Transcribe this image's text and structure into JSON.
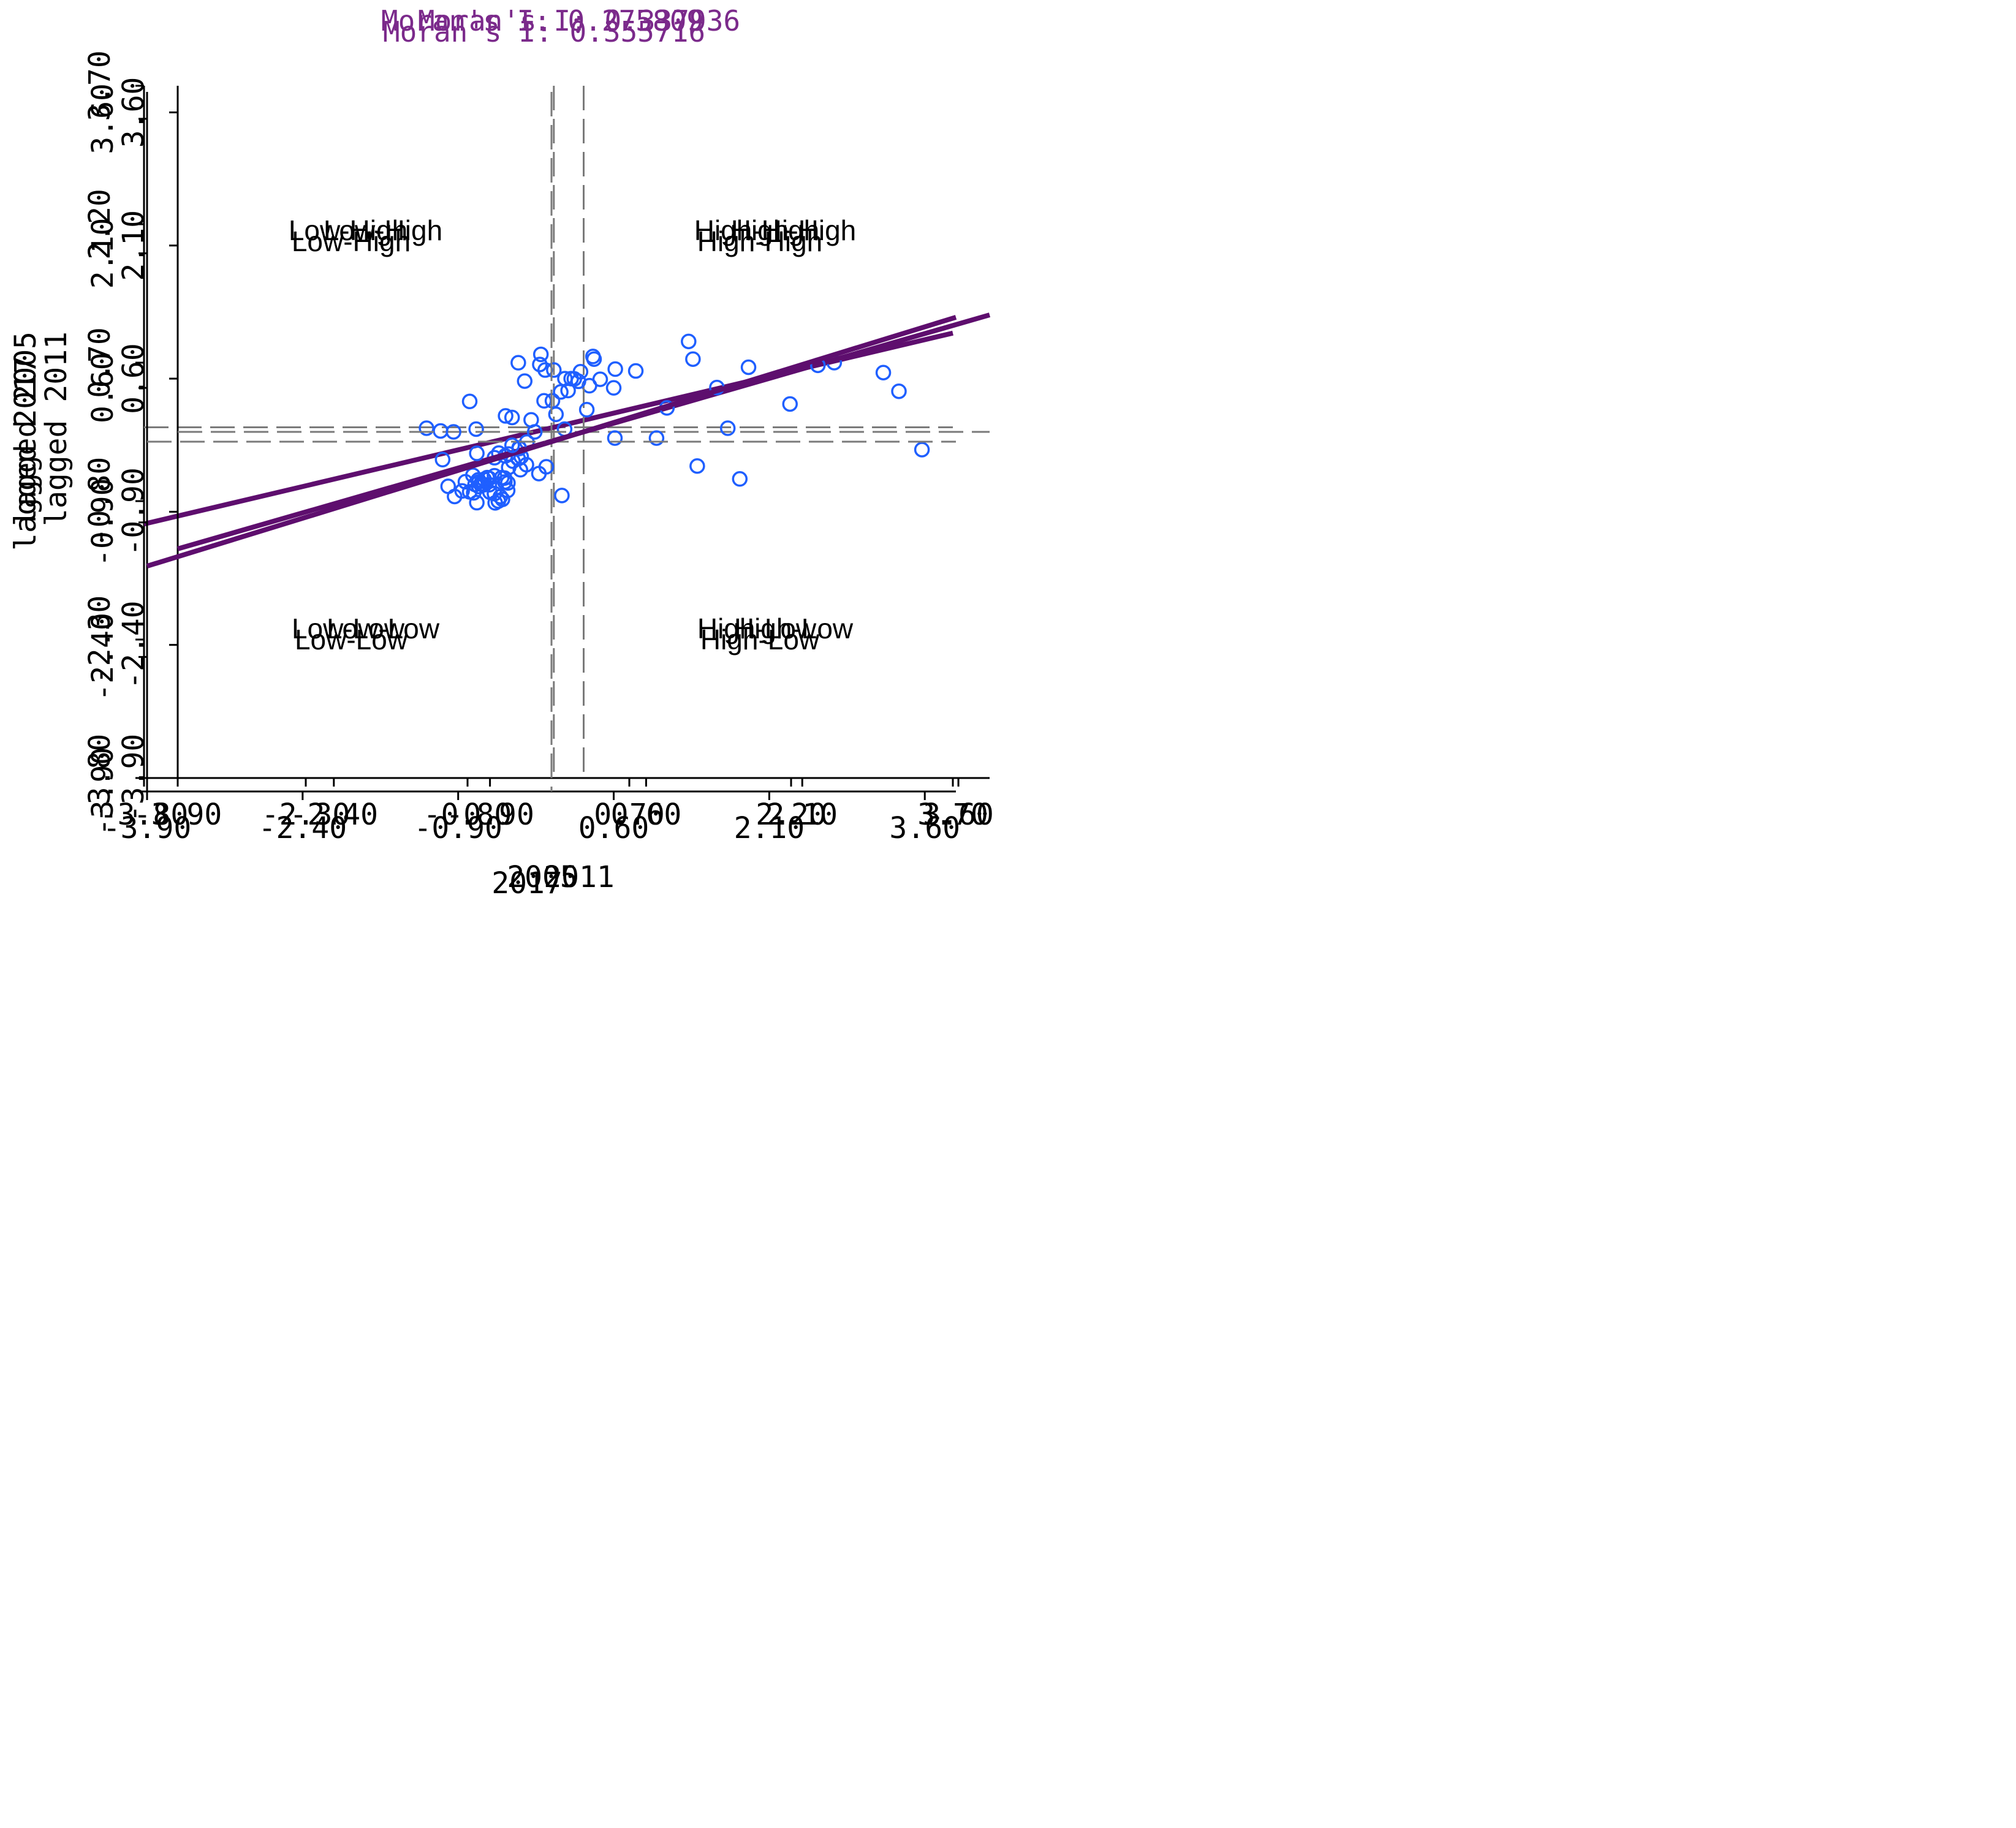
{
  "colors": {
    "title": "#7b2a8b",
    "regression": "#5e0e6e",
    "points": "#1f5fff",
    "axis": "#000000",
    "dashed": "#7a7a7a",
    "text": "#000000"
  },
  "chart_data": [
    {
      "type": "scatter",
      "title": "Moran's I: 0.275809",
      "xlabel": "2005",
      "ylabel": "lagged 2005",
      "xlim": [
        -3.8,
        3.7
      ],
      "ylim": [
        -3.8,
        3.7
      ],
      "xticks": [
        "-3.80",
        "-2.30",
        "-0.80",
        "0.70",
        "2.20",
        "3.70"
      ],
      "yticks": [
        "-3.80",
        "-2.30",
        "-0.80",
        "0.70",
        "2.20",
        "3.70"
      ],
      "xtick_values": [
        -3.8,
        -2.3,
        -0.8,
        0.7,
        2.2,
        3.7
      ],
      "ytick_values": [
        -3.8,
        -2.3,
        -0.8,
        0.7,
        2.2,
        3.7
      ],
      "quadrants": {
        "low_high": "Low-High",
        "high_high": "High-High",
        "low_low": "Low-Low",
        "high_low": "High-Low"
      },
      "slope": 0.275809,
      "x": [
        -1.18,
        -1.05,
        -0.78,
        -0.72,
        -0.55,
        -0.32,
        -0.27,
        -0.13,
        -0.12,
        -0.08,
        0.02,
        0.0,
        0.1,
        0.33,
        0.43,
        0.57,
        0.76,
        1.25,
        1.33,
        2.6,
        3.2,
        -0.98,
        -0.92,
        -0.85,
        -0.82,
        -0.78,
        -0.75,
        -0.7,
        -0.66,
        -0.51,
        -0.45,
        -0.42,
        -0.31,
        -0.33,
        -0.25,
        -0.73,
        -0.21
      ],
      "y": [
        -0.01,
        -0.04,
        0.28,
        -0.02,
        -0.33,
        -0.23,
        0.5,
        0.68,
        0.79,
        0.62,
        0.14,
        0.62,
        -0.02,
        0.45,
        0.52,
        0.63,
        0.61,
        0.93,
        -0.42,
        0.7,
        0.39,
        -0.64,
        -0.75,
        -0.69,
        -0.59,
        -0.7,
        -0.52,
        -0.57,
        -0.62,
        -0.28,
        -0.31,
        -0.29,
        -0.46,
        -0.34,
        -0.16,
        -0.62,
        0.08
      ]
    },
    {
      "type": "scatter",
      "title": "Moran's I: 0.337936",
      "xlabel": "2011",
      "ylabel": "lagged 2011",
      "xlim": [
        -3.9,
        3.9
      ],
      "ylim": [
        -3.9,
        3.9
      ],
      "xticks": [
        "-3.90",
        "-2.40",
        "-0.90",
        "0.60",
        "2.10",
        "3.60"
      ],
      "yticks": [
        "-3.90",
        "-2.40",
        "-0.90",
        "0.60",
        "2.10",
        "3.60"
      ],
      "xtick_values": [
        -3.9,
        -2.4,
        -0.9,
        0.6,
        2.1,
        3.6
      ],
      "ytick_values": [
        -3.9,
        -2.4,
        -0.9,
        0.6,
        2.1,
        3.6
      ],
      "quadrants": {
        "low_high": "Low-High",
        "high_high": "High-High",
        "low_low": "Low-Low",
        "high_low": "High-Low"
      },
      "slope": 0.337936,
      "x": [
        -1.25,
        -0.75,
        -0.9,
        -0.8,
        -0.82,
        -0.78,
        -0.73,
        -0.76,
        -0.68,
        -0.62,
        -0.55,
        -0.47,
        -0.43,
        -0.38,
        -0.3,
        -0.22,
        -0.18,
        -0.12,
        -0.05,
        0.03,
        0.1,
        0.3,
        0.7,
        0.8,
        1.05,
        1.28,
        1.5,
        2.25,
        3.25,
        -0.6,
        -0.85,
        -0.72
      ],
      "y": [
        0.0,
        0.18,
        -0.68,
        -0.73,
        -0.78,
        -0.76,
        -0.66,
        -0.52,
        -0.33,
        -0.18,
        -0.37,
        0.0,
        -0.47,
        0.35,
        0.35,
        0.45,
        0.6,
        0.6,
        0.57,
        0.25,
        0.82,
        -0.07,
        -0.07,
        0.27,
        0.82,
        0.5,
        -0.53,
        0.75,
        -0.2,
        -0.28,
        -0.8,
        -0.4
      ]
    },
    {
      "type": "scatter",
      "title": "Moran's I: 0.355716",
      "xlabel": "2017",
      "ylabel": "lagged 2017",
      "xlim": [
        -3.9,
        3.9
      ],
      "ylim": [
        -3.9,
        3.9
      ],
      "xticks": [
        "-3.90",
        "-2.40",
        "-0.90",
        "0.60",
        "2.10",
        "3.60"
      ],
      "yticks": [
        "-3.90",
        "-2.40",
        "-0.90",
        "0.60",
        "2.10",
        "3.60"
      ],
      "xtick_values": [
        -3.9,
        -2.4,
        -0.9,
        0.6,
        2.1,
        3.6
      ],
      "ytick_values": [
        -3.9,
        -2.4,
        -0.9,
        0.6,
        2.1,
        3.6
      ],
      "quadrants": {
        "low_high": "Low-High",
        "high_high": "High-High",
        "low_low": "Low-Low",
        "high_low": "High-Low"
      },
      "slope": 0.355716,
      "x": [
        -1.05,
        -0.72,
        -0.75,
        -0.72,
        -0.68,
        -0.65,
        -0.6,
        -0.55,
        -0.48,
        -0.42,
        -0.38,
        -0.55,
        -0.7,
        -0.45,
        -0.38,
        -0.32,
        -0.05,
        0.1,
        0.16,
        0.22,
        0.28,
        0.4,
        0.6,
        1.7,
        1.9,
        2.3,
        3.2,
        -0.65,
        -0.6,
        -0.62,
        -0.7
      ],
      "y": [
        -0.2,
        -0.13,
        -0.57,
        -0.68,
        -0.47,
        -0.48,
        -0.41,
        -0.58,
        -0.4,
        -0.46,
        -0.04,
        -0.38,
        -0.45,
        -0.45,
        0.27,
        0.88,
        -0.28,
        -0.6,
        0.57,
        0.7,
        0.78,
        0.95,
        0.6,
        0.15,
        0.83,
        0.42,
        0.77,
        -0.42,
        -0.48,
        -0.4,
        -0.5
      ]
    }
  ]
}
